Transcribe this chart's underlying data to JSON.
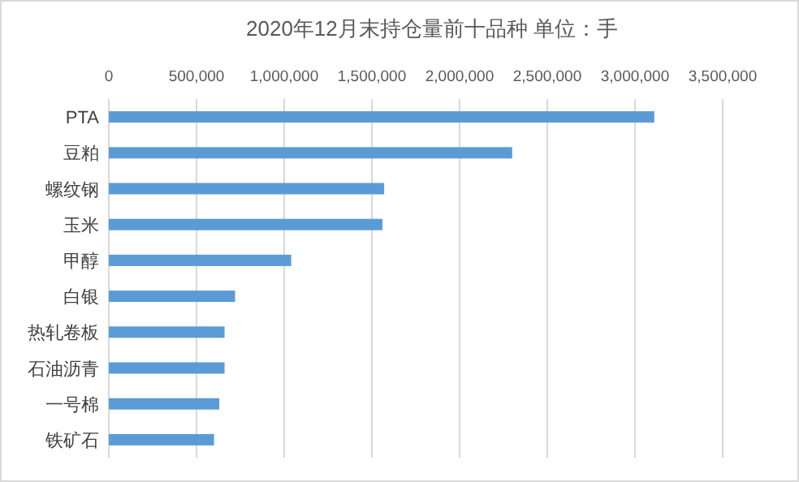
{
  "chart_data": {
    "type": "bar",
    "orientation": "horizontal",
    "title": "2020年12月末持仓量前十品种 单位：手",
    "categories": [
      "PTA",
      "豆粕",
      "螺纹钢",
      "玉米",
      "甲醇",
      "白银",
      "热轧卷板",
      "石油沥青",
      "一号棉",
      "铁矿石"
    ],
    "values": [
      3110000,
      2300000,
      1570000,
      1560000,
      1040000,
      720000,
      660000,
      660000,
      630000,
      600000
    ],
    "color": "#5b9bd5",
    "xlim": [
      0,
      3500000
    ],
    "xticks": [
      0,
      {
        "value": 500000,
        "label": "500,000"
      },
      {
        "value": 1000000,
        "label": "1,000,000"
      },
      {
        "value": 1500000,
        "label": "1,500,000"
      },
      {
        "value": 2000000,
        "label": "2,000,000"
      },
      {
        "value": 2500000,
        "label": "2,500,000"
      },
      {
        "value": 3000000,
        "label": "3,000,000"
      },
      {
        "value": 3500000,
        "label": "3,500,000"
      }
    ],
    "grid": "x"
  }
}
